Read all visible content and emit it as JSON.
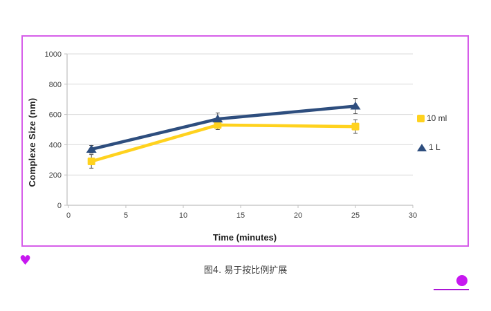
{
  "page": {
    "caption": "图4. 易于按比例扩展"
  },
  "colors": {
    "frame_border": "#d65de9",
    "heart": "#c718f0",
    "dot": "#c718f0",
    "dot_underline": "#ab14d6",
    "grid": "#d9d9d9",
    "axis": "#bfbfbf",
    "tick_text": "#404040",
    "error_bar": "#4d4d4d"
  },
  "chart_data": {
    "type": "line",
    "title": "",
    "xlabel": "Time (minutes)",
    "ylabel": "Complexe Size (nm)",
    "xlim": [
      0,
      30
    ],
    "ylim": [
      0,
      1000
    ],
    "x_ticks": [
      0,
      5,
      10,
      15,
      20,
      25,
      30
    ],
    "y_ticks": [
      0,
      200,
      400,
      600,
      800,
      1000
    ],
    "grid": "horizontal",
    "legend_position": "right",
    "x": [
      2,
      13,
      25
    ],
    "series": [
      {
        "name": "10 ml",
        "marker": "square",
        "color": "#ffd21e",
        "values": [
          290,
          530,
          520
        ],
        "error": [
          45,
          30,
          45
        ]
      },
      {
        "name": "1 L",
        "marker": "triangle",
        "color": "#2e4e7e",
        "values": [
          370,
          570,
          655
        ],
        "error": [
          25,
          40,
          50
        ]
      }
    ]
  }
}
